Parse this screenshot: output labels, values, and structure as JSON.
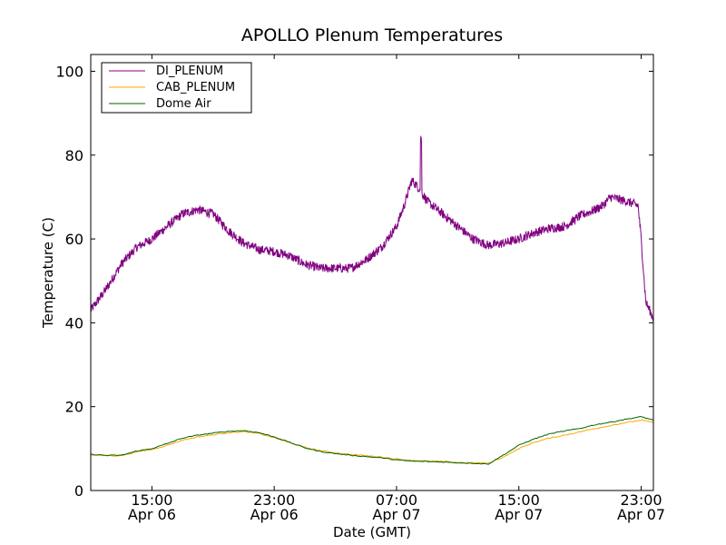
{
  "chart_data": {
    "type": "line",
    "title": "APOLLO Plenum Temperatures",
    "xlabel": "Date (GMT)",
    "ylabel": "Temperature (C)",
    "x_unit": "hours since Apr 06 11:00 GMT",
    "xlim": [
      0,
      36.8
    ],
    "ylim": [
      0,
      104
    ],
    "yticks": [
      0,
      20,
      40,
      60,
      80,
      100
    ],
    "xticks": [
      {
        "x": 4,
        "time": "15:00",
        "date": "Apr 06"
      },
      {
        "x": 12,
        "time": "23:00",
        "date": "Apr 06"
      },
      {
        "x": 20,
        "time": "07:00",
        "date": "Apr 07"
      },
      {
        "x": 28,
        "time": "15:00",
        "date": "Apr 07"
      },
      {
        "x": 36,
        "time": "23:00",
        "date": "Apr 07"
      }
    ],
    "grid": false,
    "legend_position": "upper-left",
    "series": [
      {
        "name": "DI_PLENUM",
        "color": "#800080",
        "x": [
          0,
          1,
          2,
          3,
          4,
          5,
          6,
          7,
          8,
          9,
          10,
          11,
          12,
          13,
          14,
          15,
          16,
          17,
          18,
          19,
          20,
          20.5,
          21,
          21.5,
          22,
          23,
          24,
          25,
          26,
          27,
          28,
          29,
          30,
          31,
          32,
          33,
          33.5,
          34,
          35,
          35.8,
          36,
          36.3,
          36.8
        ],
        "y": [
          43,
          48,
          54,
          58,
          60,
          63,
          66,
          67,
          66,
          62,
          59,
          57.5,
          57,
          56,
          54,
          53,
          53,
          53,
          55,
          58,
          63,
          68,
          74,
          72,
          69,
          66,
          63,
          60,
          58.5,
          59,
          60,
          61.5,
          62.5,
          63,
          65.5,
          67,
          68,
          70,
          69,
          68,
          60,
          45,
          41
        ],
        "spikes": [
          {
            "x": 21.6,
            "y": 85
          }
        ]
      },
      {
        "name": "CAB_PLENUM",
        "color": "#ffa500",
        "x": [
          0,
          1,
          2,
          3,
          4,
          5,
          6,
          7,
          8,
          9,
          10,
          11,
          12,
          13,
          14,
          15,
          16,
          17,
          18,
          19,
          20,
          21,
          22,
          23,
          24,
          25,
          26,
          27,
          28,
          29,
          30,
          31,
          32,
          33,
          34,
          35,
          36,
          36.8
        ],
        "y": [
          8.5,
          8.3,
          8.3,
          9.2,
          9.8,
          10.8,
          12,
          12.8,
          13.3,
          13.8,
          14,
          13.6,
          12.6,
          11.4,
          10.3,
          9.5,
          9,
          8.6,
          8.3,
          8,
          7.5,
          7.2,
          7,
          6.9,
          6.7,
          6.6,
          6.5,
          8,
          10,
          11.5,
          12.5,
          13.2,
          14,
          14.8,
          15.5,
          16.2,
          16.8,
          16.2
        ]
      },
      {
        "name": "Dome Air",
        "color": "#006400",
        "x": [
          0,
          1,
          2,
          3,
          4,
          5,
          6,
          7,
          8,
          9,
          10,
          11,
          12,
          13,
          14,
          15,
          16,
          17,
          18,
          19,
          20,
          21,
          22,
          23,
          24,
          25,
          26,
          27,
          28,
          29,
          30,
          31,
          32,
          33,
          34,
          35,
          36,
          36.8
        ],
        "y": [
          8.6,
          8.4,
          8.4,
          9.4,
          10,
          11.2,
          12.5,
          13.2,
          13.7,
          14.1,
          14.3,
          13.8,
          12.8,
          11.5,
          10.2,
          9.3,
          8.8,
          8.4,
          8.1,
          7.8,
          7.3,
          7,
          6.9,
          6.8,
          6.6,
          6.5,
          6.3,
          8.5,
          10.8,
          12.3,
          13.5,
          14.2,
          14.8,
          15.7,
          16.3,
          17,
          17.6,
          16.8
        ]
      }
    ]
  }
}
